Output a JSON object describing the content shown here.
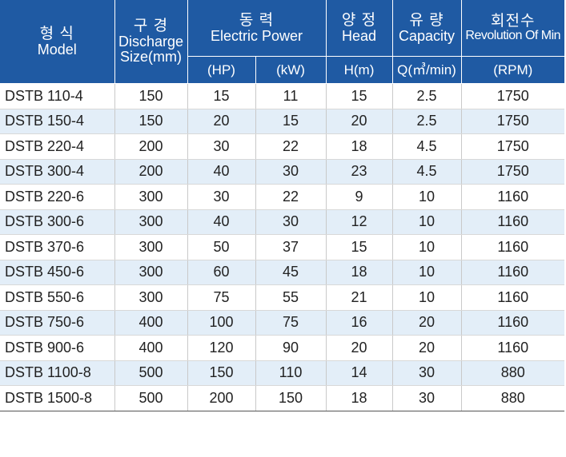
{
  "header": {
    "model": {
      "kor": "형 식",
      "eng": "Model"
    },
    "discharge": {
      "kor": "구 경",
      "eng1": "Discharge",
      "eng2": "Size(mm)"
    },
    "power": {
      "kor": "동 력",
      "eng": "Electric Power",
      "unit_hp": "(HP)",
      "unit_kw": "(kW)"
    },
    "head": {
      "kor": "양 정",
      "eng": "Head",
      "unit": "H(m)"
    },
    "capacity": {
      "kor": "유 량",
      "eng": "Capacity",
      "unit": "Q(㎥/min)"
    },
    "revolution": {
      "kor": "회전수",
      "eng": "Revolution Of Min",
      "unit": "(RPM)"
    }
  },
  "rows": [
    {
      "model": "DSTB 110-4",
      "size": "150",
      "hp": "15",
      "kw": "11",
      "head": "15",
      "capacity": "2.5",
      "rpm": "1750"
    },
    {
      "model": "DSTB 150-4",
      "size": "150",
      "hp": "20",
      "kw": "15",
      "head": "20",
      "capacity": "2.5",
      "rpm": "1750"
    },
    {
      "model": "DSTB 220-4",
      "size": "200",
      "hp": "30",
      "kw": "22",
      "head": "18",
      "capacity": "4.5",
      "rpm": "1750"
    },
    {
      "model": "DSTB 300-4",
      "size": "200",
      "hp": "40",
      "kw": "30",
      "head": "23",
      "capacity": "4.5",
      "rpm": "1750"
    },
    {
      "model": "DSTB 220-6",
      "size": "300",
      "hp": "30",
      "kw": "22",
      "head": "9",
      "capacity": "10",
      "rpm": "1160"
    },
    {
      "model": "DSTB 300-6",
      "size": "300",
      "hp": "40",
      "kw": "30",
      "head": "12",
      "capacity": "10",
      "rpm": "1160"
    },
    {
      "model": "DSTB 370-6",
      "size": "300",
      "hp": "50",
      "kw": "37",
      "head": "15",
      "capacity": "10",
      "rpm": "1160"
    },
    {
      "model": "DSTB 450-6",
      "size": "300",
      "hp": "60",
      "kw": "45",
      "head": "18",
      "capacity": "10",
      "rpm": "1160"
    },
    {
      "model": "DSTB 550-6",
      "size": "300",
      "hp": "75",
      "kw": "55",
      "head": "21",
      "capacity": "10",
      "rpm": "1160"
    },
    {
      "model": "DSTB 750-6",
      "size": "400",
      "hp": "100",
      "kw": "75",
      "head": "16",
      "capacity": "20",
      "rpm": "1160"
    },
    {
      "model": "DSTB 900-6",
      "size": "400",
      "hp": "120",
      "kw": "90",
      "head": "20",
      "capacity": "20",
      "rpm": "1160"
    },
    {
      "model": "DSTB 1100-8",
      "size": "500",
      "hp": "150",
      "kw": "110",
      "head": "14",
      "capacity": "30",
      "rpm": "880"
    },
    {
      "model": "DSTB 1500-8",
      "size": "500",
      "hp": "200",
      "kw": "150",
      "head": "18",
      "capacity": "30",
      "rpm": "880"
    }
  ],
  "colors": {
    "header_bg": "#1f5aa3",
    "stripe_bg": "#e3eef8",
    "text": "#222222"
  }
}
